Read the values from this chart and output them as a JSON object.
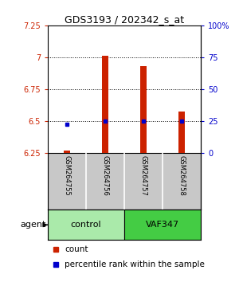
{
  "title": "GDS3193 / 202342_s_at",
  "samples": [
    "GSM264755",
    "GSM264756",
    "GSM264757",
    "GSM264758"
  ],
  "count_values": [
    6.265,
    7.01,
    6.93,
    6.57
  ],
  "percentile_values": [
    22,
    25,
    25,
    25
  ],
  "ylim_left": [
    6.25,
    7.25
  ],
  "ylim_right": [
    0,
    100
  ],
  "yticks_left": [
    6.25,
    6.5,
    6.75,
    7.0,
    7.25
  ],
  "yticks_right": [
    0,
    25,
    50,
    75,
    100
  ],
  "ytick_labels_left": [
    "6.25",
    "6.5",
    "6.75",
    "7",
    "7.25"
  ],
  "ytick_labels_right": [
    "0",
    "25",
    "50",
    "75",
    "100%"
  ],
  "groups": [
    {
      "label": "control",
      "samples": [
        0,
        1
      ],
      "color": "#AAEAAA"
    },
    {
      "label": "VAF347",
      "samples": [
        2,
        3
      ],
      "color": "#44CC44"
    }
  ],
  "bar_color": "#CC2200",
  "dot_color": "#0000CC",
  "bar_width": 0.18,
  "background_plot": "#FFFFFF",
  "background_label": "#C8C8C8",
  "agent_label": "agent",
  "legend_count_label": "count",
  "legend_percentile_label": "percentile rank within the sample"
}
